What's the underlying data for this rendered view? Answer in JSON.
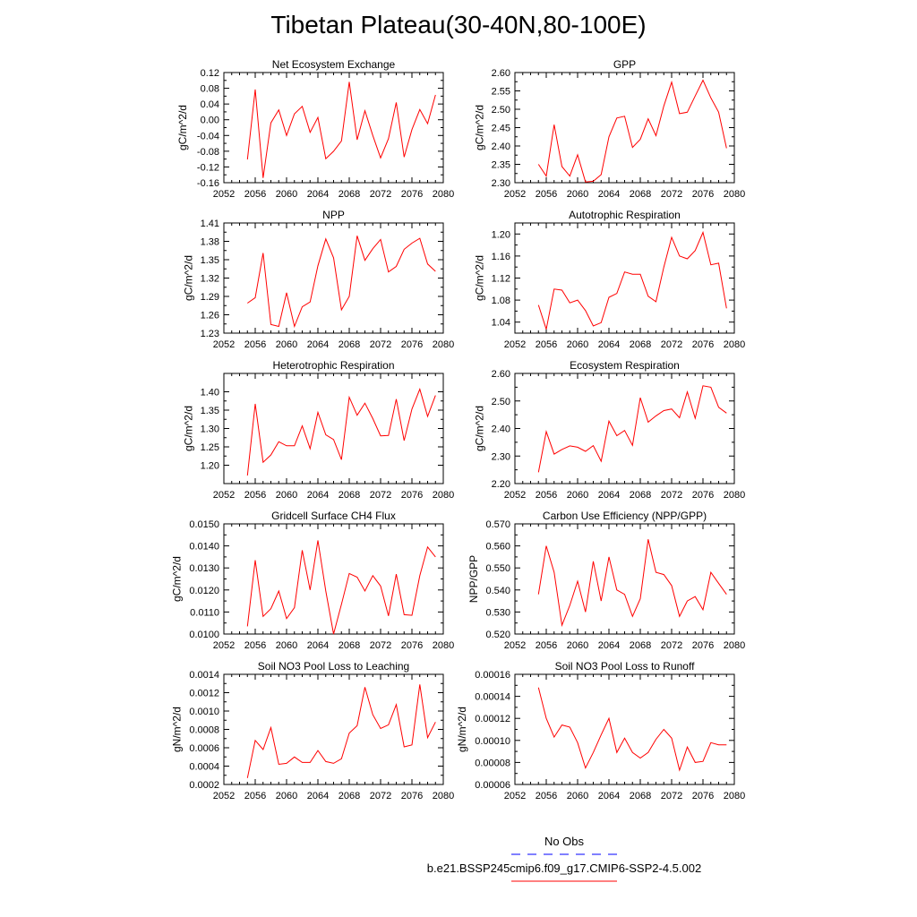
{
  "title": "Tibetan Plateau(30-40N,80-100E)",
  "colors": {
    "model_line": "#ff0000",
    "obs_line": "#0000ff",
    "axis": "#000000"
  },
  "legend": {
    "obs_label": "No Obs",
    "model_label": "b.e21.BSSP245cmip6.f09_g17.CMIP6-SSP2-4.5.002"
  },
  "chart_data": [
    {
      "type": "line",
      "title": "Net Ecosystem Exchange",
      "xlabel": "",
      "ylabel": "gC/m^2/d",
      "xlim": [
        2052,
        2080
      ],
      "xticks": [
        2052,
        2056,
        2060,
        2064,
        2068,
        2072,
        2076,
        2080
      ],
      "ylim": [
        -0.16,
        0.12
      ],
      "yticks": [
        -0.16,
        -0.12,
        -0.08,
        -0.04,
        0.0,
        0.04,
        0.08,
        0.12
      ],
      "ytick_labels": [
        "-0.16",
        "-0.12",
        "-0.08",
        "-0.04",
        "0.00",
        "0.04",
        "0.08",
        "0.12"
      ],
      "x": [
        2055,
        2056,
        2057,
        2058,
        2059,
        2060,
        2061,
        2062,
        2063,
        2064,
        2065,
        2066,
        2067,
        2068,
        2069,
        2070,
        2071,
        2072,
        2073,
        2074,
        2075,
        2076,
        2077,
        2078,
        2079
      ],
      "values": [
        -0.101,
        0.077,
        -0.148,
        -0.008,
        0.025,
        -0.04,
        0.015,
        0.034,
        -0.032,
        0.006,
        -0.099,
        -0.08,
        -0.054,
        0.096,
        -0.051,
        0.023,
        -0.04,
        -0.097,
        -0.048,
        0.044,
        -0.095,
        -0.025,
        0.026,
        -0.01,
        0.063
      ]
    },
    {
      "type": "line",
      "title": "GPP",
      "xlabel": "",
      "ylabel": "gC/m^2/d",
      "xlim": [
        2052,
        2080
      ],
      "xticks": [
        2052,
        2056,
        2060,
        2064,
        2068,
        2072,
        2076,
        2080
      ],
      "ylim": [
        2.3,
        2.6
      ],
      "yticks": [
        2.3,
        2.35,
        2.4,
        2.45,
        2.5,
        2.55,
        2.6
      ],
      "ytick_labels": [
        "2.30",
        "2.35",
        "2.40",
        "2.45",
        "2.50",
        "2.55",
        "2.60"
      ],
      "x": [
        2055,
        2056,
        2057,
        2058,
        2059,
        2060,
        2061,
        2062,
        2063,
        2064,
        2065,
        2066,
        2067,
        2068,
        2069,
        2070,
        2071,
        2072,
        2073,
        2074,
        2075,
        2076,
        2077,
        2078,
        2079
      ],
      "values": [
        2.35,
        2.318,
        2.458,
        2.344,
        2.318,
        2.376,
        2.302,
        2.304,
        2.322,
        2.425,
        2.476,
        2.481,
        2.396,
        2.418,
        2.474,
        2.428,
        2.509,
        2.574,
        2.488,
        2.492,
        2.536,
        2.579,
        2.531,
        2.492,
        2.394
      ]
    },
    {
      "type": "line",
      "title": "NPP",
      "xlabel": "",
      "ylabel": "gC/m^2/d",
      "xlim": [
        2052,
        2080
      ],
      "xticks": [
        2052,
        2056,
        2060,
        2064,
        2068,
        2072,
        2076,
        2080
      ],
      "ylim": [
        1.23,
        1.41
      ],
      "yticks": [
        1.23,
        1.26,
        1.29,
        1.32,
        1.35,
        1.38,
        1.41
      ],
      "ytick_labels": [
        "1.23",
        "1.26",
        "1.29",
        "1.32",
        "1.35",
        "1.38",
        "1.41"
      ],
      "x": [
        2055,
        2056,
        2057,
        2058,
        2059,
        2060,
        2061,
        2062,
        2063,
        2064,
        2065,
        2066,
        2067,
        2068,
        2069,
        2070,
        2071,
        2072,
        2073,
        2074,
        2075,
        2076,
        2077,
        2078,
        2079
      ],
      "values": [
        1.279,
        1.288,
        1.361,
        1.244,
        1.241,
        1.296,
        1.241,
        1.273,
        1.281,
        1.34,
        1.384,
        1.353,
        1.268,
        1.29,
        1.389,
        1.349,
        1.368,
        1.383,
        1.33,
        1.339,
        1.367,
        1.377,
        1.385,
        1.343,
        1.331
      ]
    },
    {
      "type": "line",
      "title": "Autotrophic Respiration",
      "xlabel": "",
      "ylabel": "gC/m^2/d",
      "xlim": [
        2052,
        2080
      ],
      "xticks": [
        2052,
        2056,
        2060,
        2064,
        2068,
        2072,
        2076,
        2080
      ],
      "ylim": [
        1.02,
        1.22
      ],
      "yticks": [
        1.04,
        1.08,
        1.12,
        1.16,
        1.2
      ],
      "ytick_labels": [
        "1.04",
        "1.08",
        "1.12",
        "1.16",
        "1.20"
      ],
      "x": [
        2055,
        2056,
        2057,
        2058,
        2059,
        2060,
        2061,
        2062,
        2063,
        2064,
        2065,
        2066,
        2067,
        2068,
        2069,
        2070,
        2071,
        2072,
        2073,
        2074,
        2075,
        2076,
        2077,
        2078,
        2079
      ],
      "values": [
        1.071,
        1.027,
        1.1,
        1.098,
        1.075,
        1.08,
        1.061,
        1.033,
        1.039,
        1.085,
        1.092,
        1.131,
        1.127,
        1.127,
        1.087,
        1.077,
        1.14,
        1.194,
        1.16,
        1.155,
        1.17,
        1.203,
        1.144,
        1.147,
        1.065
      ]
    },
    {
      "type": "line",
      "title": "Heterotrophic Respiration",
      "xlabel": "",
      "ylabel": "gC/m^2/d",
      "xlim": [
        2052,
        2080
      ],
      "xticks": [
        2052,
        2056,
        2060,
        2064,
        2068,
        2072,
        2076,
        2080
      ],
      "ylim": [
        1.15,
        1.45
      ],
      "yticks": [
        1.2,
        1.25,
        1.3,
        1.35,
        1.4
      ],
      "ytick_labels": [
        "1.20",
        "1.25",
        "1.30",
        "1.35",
        "1.40"
      ],
      "x": [
        2055,
        2056,
        2057,
        2058,
        2059,
        2060,
        2061,
        2062,
        2063,
        2064,
        2065,
        2066,
        2067,
        2068,
        2069,
        2070,
        2071,
        2072,
        2073,
        2074,
        2075,
        2076,
        2077,
        2078,
        2079
      ],
      "values": [
        1.172,
        1.367,
        1.208,
        1.228,
        1.264,
        1.253,
        1.253,
        1.307,
        1.245,
        1.344,
        1.283,
        1.27,
        1.215,
        1.385,
        1.336,
        1.369,
        1.327,
        1.28,
        1.281,
        1.38,
        1.267,
        1.353,
        1.407,
        1.333,
        1.39
      ]
    },
    {
      "type": "line",
      "title": "Ecosystem Respiration",
      "xlabel": "",
      "ylabel": "gC/m^2/d",
      "xlim": [
        2052,
        2080
      ],
      "xticks": [
        2052,
        2056,
        2060,
        2064,
        2068,
        2072,
        2076,
        2080
      ],
      "ylim": [
        2.2,
        2.6
      ],
      "yticks": [
        2.2,
        2.3,
        2.4,
        2.5,
        2.6
      ],
      "ytick_labels": [
        "2.20",
        "2.30",
        "2.40",
        "2.50",
        "2.60"
      ],
      "x": [
        2055,
        2056,
        2057,
        2058,
        2059,
        2060,
        2061,
        2062,
        2063,
        2064,
        2065,
        2066,
        2067,
        2068,
        2069,
        2070,
        2071,
        2072,
        2073,
        2074,
        2075,
        2076,
        2077,
        2078,
        2079
      ],
      "values": [
        2.241,
        2.389,
        2.307,
        2.324,
        2.337,
        2.332,
        2.317,
        2.338,
        2.281,
        2.427,
        2.374,
        2.393,
        2.339,
        2.512,
        2.423,
        2.446,
        2.465,
        2.471,
        2.439,
        2.533,
        2.437,
        2.555,
        2.55,
        2.477,
        2.456
      ]
    },
    {
      "type": "line",
      "title": "Gridcell Surface CH4 Flux",
      "xlabel": "",
      "ylabel": "gC/m^2/d",
      "xlim": [
        2052,
        2080
      ],
      "xticks": [
        2052,
        2056,
        2060,
        2064,
        2068,
        2072,
        2076,
        2080
      ],
      "ylim": [
        0.01,
        0.015
      ],
      "yticks": [
        0.01,
        0.011,
        0.012,
        0.013,
        0.014,
        0.015
      ],
      "ytick_labels": [
        "0.0100",
        "0.0110",
        "0.0120",
        "0.0130",
        "0.0140",
        "0.0150"
      ],
      "x": [
        2055,
        2056,
        2057,
        2058,
        2059,
        2060,
        2061,
        2062,
        2063,
        2064,
        2065,
        2066,
        2067,
        2068,
        2069,
        2070,
        2071,
        2072,
        2073,
        2074,
        2075,
        2076,
        2077,
        2078,
        2079
      ],
      "values": [
        0.01035,
        0.01335,
        0.0108,
        0.01115,
        0.01195,
        0.0107,
        0.0112,
        0.0138,
        0.012,
        0.01425,
        0.01195,
        0.01,
        0.01135,
        0.01275,
        0.01258,
        0.01195,
        0.01265,
        0.01218,
        0.01082,
        0.01272,
        0.01088,
        0.01085,
        0.01265,
        0.01395,
        0.0135
      ]
    },
    {
      "type": "line",
      "title": "Carbon Use Efficiency (NPP/GPP)",
      "xlabel": "",
      "ylabel": "NPP/GPP",
      "xlim": [
        2052,
        2080
      ],
      "xticks": [
        2052,
        2056,
        2060,
        2064,
        2068,
        2072,
        2076,
        2080
      ],
      "ylim": [
        0.52,
        0.57
      ],
      "yticks": [
        0.52,
        0.53,
        0.54,
        0.55,
        0.56,
        0.57
      ],
      "ytick_labels": [
        "0.520",
        "0.530",
        "0.540",
        "0.550",
        "0.560",
        "0.570"
      ],
      "x": [
        2055,
        2056,
        2057,
        2058,
        2059,
        2060,
        2061,
        2062,
        2063,
        2064,
        2065,
        2066,
        2067,
        2068,
        2069,
        2070,
        2071,
        2072,
        2073,
        2074,
        2075,
        2076,
        2077,
        2078,
        2079
      ],
      "values": [
        0.538,
        0.56,
        0.548,
        0.524,
        0.533,
        0.544,
        0.53,
        0.553,
        0.535,
        0.555,
        0.54,
        0.538,
        0.528,
        0.536,
        0.563,
        0.548,
        0.547,
        0.542,
        0.528,
        0.535,
        0.537,
        0.531,
        0.548,
        0.543,
        0.538
      ]
    },
    {
      "type": "line",
      "title": "Soil NO3 Pool Loss to Leaching",
      "xlabel": "",
      "ylabel": "gN/m^2/d",
      "xlim": [
        2052,
        2080
      ],
      "xticks": [
        2052,
        2056,
        2060,
        2064,
        2068,
        2072,
        2076,
        2080
      ],
      "ylim": [
        0.0002,
        0.0014
      ],
      "yticks": [
        0.0002,
        0.0004,
        0.0006,
        0.0008,
        0.001,
        0.0012,
        0.0014
      ],
      "ytick_labels": [
        "0.0002",
        "0.0004",
        "0.0006",
        "0.0008",
        "0.0010",
        "0.0012",
        "0.0014"
      ],
      "x": [
        2055,
        2056,
        2057,
        2058,
        2059,
        2060,
        2061,
        2062,
        2063,
        2064,
        2065,
        2066,
        2067,
        2068,
        2069,
        2070,
        2071,
        2072,
        2073,
        2074,
        2075,
        2076,
        2077,
        2078,
        2079
      ],
      "values": [
        0.00027,
        0.00068,
        0.00058,
        0.00082,
        0.00042,
        0.00043,
        0.0005,
        0.00044,
        0.00044,
        0.00057,
        0.00045,
        0.00043,
        0.00048,
        0.00076,
        0.00084,
        0.00126,
        0.00096,
        0.00081,
        0.00085,
        0.00107,
        0.00061,
        0.00063,
        0.00129,
        0.00071,
        0.00088
      ]
    },
    {
      "type": "line",
      "title": "Soil NO3 Pool Loss to Runoff",
      "xlabel": "",
      "ylabel": "gN/m^2/d",
      "xlim": [
        2052,
        2080
      ],
      "xticks": [
        2052,
        2056,
        2060,
        2064,
        2068,
        2072,
        2076,
        2080
      ],
      "ylim": [
        6e-05,
        0.00016
      ],
      "yticks": [
        6e-05,
        8e-05,
        0.0001,
        0.00012,
        0.00014,
        0.00016
      ],
      "ytick_labels": [
        "0.00006",
        "0.00008",
        "0.00010",
        "0.00012",
        "0.00014",
        "0.00016"
      ],
      "x": [
        2055,
        2056,
        2057,
        2058,
        2059,
        2060,
        2061,
        2062,
        2063,
        2064,
        2065,
        2066,
        2067,
        2068,
        2069,
        2070,
        2071,
        2072,
        2073,
        2074,
        2075,
        2076,
        2077,
        2078,
        2079
      ],
      "values": [
        0.000148,
        0.00012,
        0.000103,
        0.000114,
        0.000112,
        9.8e-05,
        7.5e-05,
        8.9e-05,
        0.000105,
        0.00012,
        8.9e-05,
        0.000102,
        8.9e-05,
        8.4e-05,
        8.9e-05,
        0.000101,
        0.00011,
        0.000102,
        7.3e-05,
        9.4e-05,
        8e-05,
        8.1e-05,
        9.8e-05,
        9.6e-05,
        9.6e-05
      ]
    }
  ]
}
